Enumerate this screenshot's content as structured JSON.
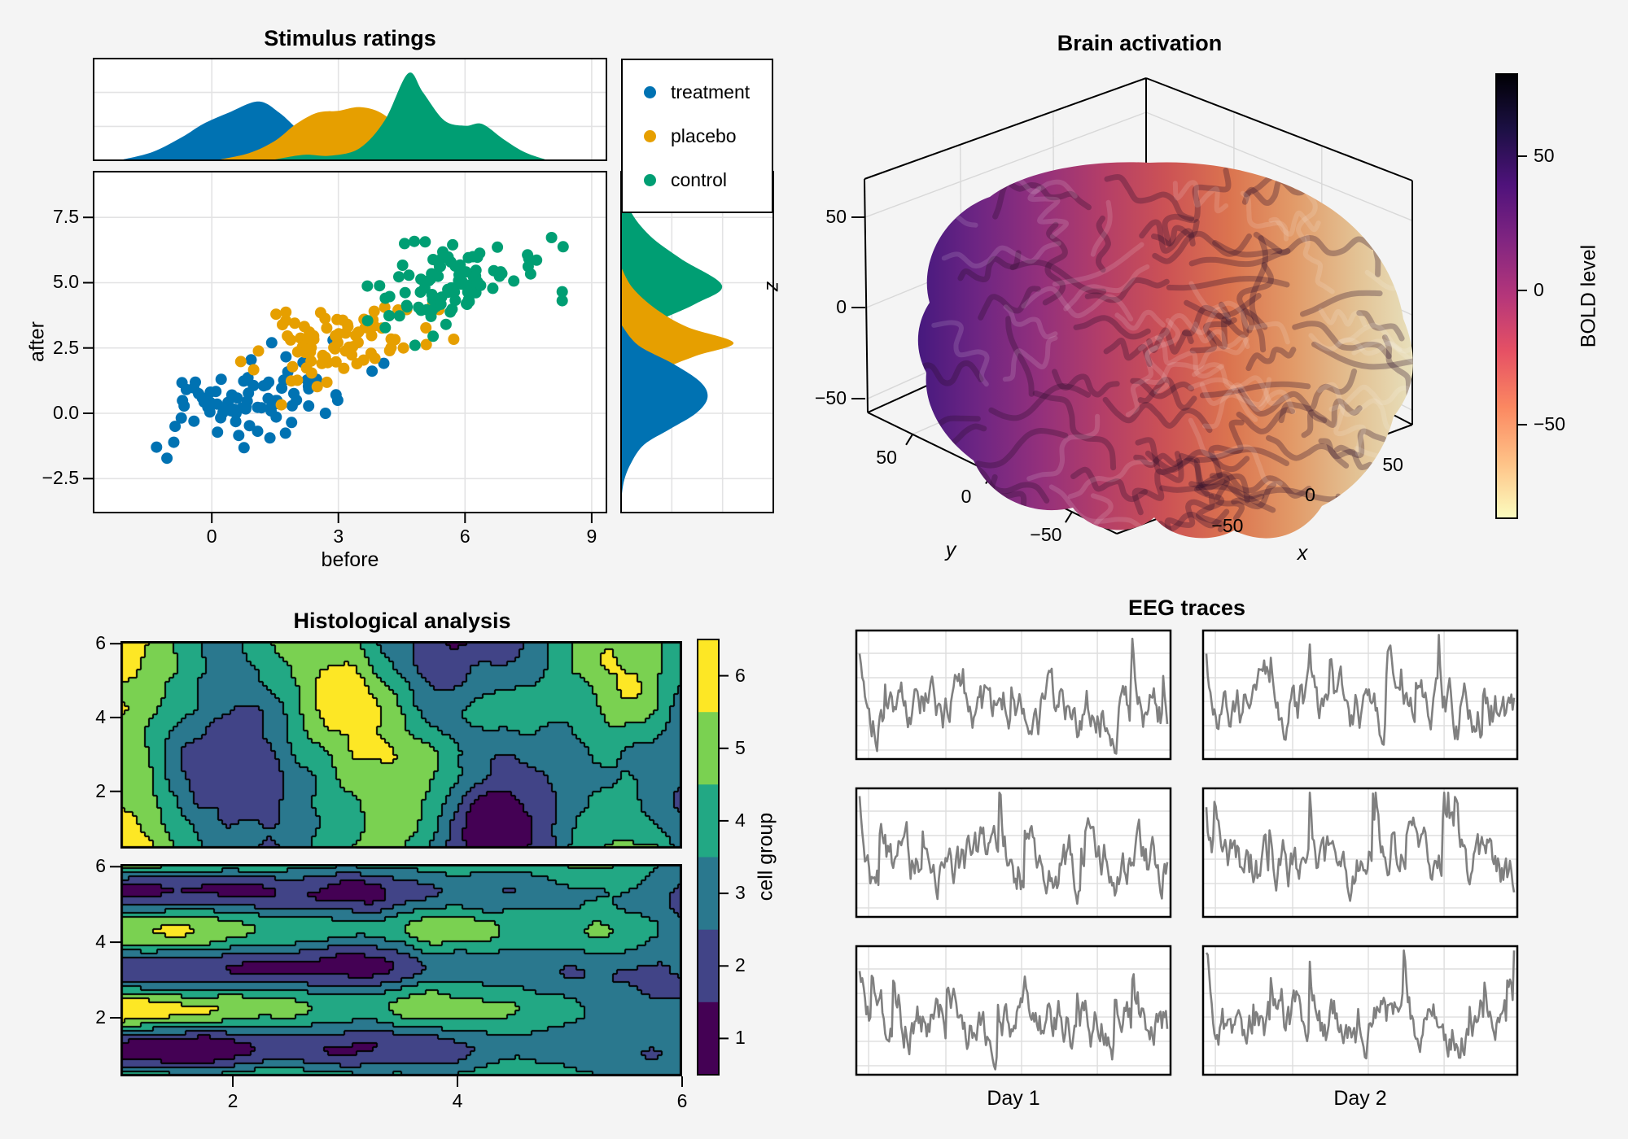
{
  "figure": {
    "background": "#f4f4f4",
    "panel_fill": "#ffffff",
    "grid_color": "#e3e3e4",
    "spine_color": "#000000"
  },
  "stimulus": {
    "title": "Stimulus ratings",
    "xlabel": "before",
    "ylabel": "after",
    "x_tick_labels": [
      "0",
      "3",
      "6",
      "9"
    ],
    "y_tick_labels": [
      "7.5",
      "5.0",
      "2.5",
      "0.0",
      "−2.5"
    ],
    "legend": {
      "items": [
        {
          "label": "treatment",
          "color": "#0072B2"
        },
        {
          "label": "placebo",
          "color": "#E69F00"
        },
        {
          "label": "control",
          "color": "#009E73"
        }
      ]
    }
  },
  "brain": {
    "title": "Brain activation",
    "xlabel": "x",
    "ylabel": "y",
    "zlabel": "z",
    "x_tick_labels": [
      "−50",
      "0",
      "50"
    ],
    "y_tick_labels": [
      "50",
      "0",
      "−50"
    ],
    "z_tick_labels": [
      "50",
      "0",
      "−50"
    ],
    "colorbar_label": "BOLD level",
    "colorbar_tick_labels": [
      "50",
      "0",
      "−50"
    ]
  },
  "histology": {
    "title": "Histological analysis",
    "x_tick_labels": [
      "2",
      "4",
      "6"
    ],
    "y_tick_labels": [
      "6",
      "4",
      "2"
    ],
    "colorbar_label": "cell group",
    "colorbar_tick_labels": [
      "6",
      "5",
      "4",
      "3",
      "2",
      "1"
    ]
  },
  "eeg": {
    "title": "EEG traces",
    "col_labels": [
      "Day 1",
      "Day 2"
    ]
  },
  "chart_data": [
    {
      "id": "stimulus_ratings",
      "type": "scatter",
      "title": "Stimulus ratings",
      "xlabel": "before",
      "ylabel": "after",
      "xlim": [
        -2.8,
        9.35
      ],
      "ylim": [
        -3.8,
        9.25
      ],
      "x_ticks": [
        0,
        3,
        6,
        9
      ],
      "y_ticks": [
        -2.5,
        0.0,
        2.5,
        5.0,
        7.5
      ],
      "grid": true,
      "legend_position": "top-right-box",
      "groups": [
        {
          "name": "treatment",
          "color": "#0072B2",
          "n": 85,
          "mean": [
            0.9,
            0.55
          ],
          "sd": [
            1.05,
            0.9
          ],
          "corr": 0.45,
          "seed": 7
        },
        {
          "name": "placebo",
          "color": "#E69F00",
          "n": 85,
          "mean": [
            3.05,
            2.7
          ],
          "sd": [
            1.0,
            0.75
          ],
          "corr": 0.4,
          "seed": 11
        },
        {
          "name": "control",
          "color": "#009E73",
          "n": 95,
          "mean": [
            5.35,
            4.95
          ],
          "sd": [
            1.15,
            0.85
          ],
          "corr": 0.35,
          "seed": 13
        }
      ],
      "marginal_x_density": [
        {
          "name": "treatment",
          "curve": [
            [
              -2.1,
              0
            ],
            [
              -1.4,
              0.08
            ],
            [
              -0.7,
              0.24
            ],
            [
              -0.2,
              0.38
            ],
            [
              0.4,
              0.5
            ],
            [
              1.1,
              0.62
            ],
            [
              1.6,
              0.5
            ],
            [
              2.1,
              0.3
            ],
            [
              2.7,
              0.13
            ],
            [
              3.3,
              0.05
            ],
            [
              4.0,
              0.01
            ],
            [
              4.6,
              0
            ]
          ]
        },
        {
          "name": "placebo",
          "curve": [
            [
              0.2,
              0
            ],
            [
              0.9,
              0.07
            ],
            [
              1.5,
              0.2
            ],
            [
              2.0,
              0.38
            ],
            [
              2.5,
              0.5
            ],
            [
              3.0,
              0.52
            ],
            [
              3.5,
              0.56
            ],
            [
              4.0,
              0.5
            ],
            [
              4.5,
              0.32
            ],
            [
              5.0,
              0.12
            ],
            [
              5.6,
              0.03
            ],
            [
              6.2,
              0
            ]
          ]
        },
        {
          "name": "control",
          "curve": [
            [
              1.5,
              0
            ],
            [
              2.2,
              0.05
            ],
            [
              2.8,
              0.04
            ],
            [
              3.5,
              0.12
            ],
            [
              4.1,
              0.42
            ],
            [
              4.65,
              0.92
            ],
            [
              5.0,
              0.72
            ],
            [
              5.5,
              0.42
            ],
            [
              6.0,
              0.36
            ],
            [
              6.4,
              0.38
            ],
            [
              6.9,
              0.22
            ],
            [
              7.4,
              0.08
            ],
            [
              7.9,
              0
            ]
          ]
        }
      ],
      "marginal_y_density": [
        {
          "name": "control",
          "curve": [
            [
              9.0,
              0
            ],
            [
              7.8,
              0.06
            ],
            [
              6.8,
              0.2
            ],
            [
              5.9,
              0.42
            ],
            [
              4.9,
              0.7
            ],
            [
              4.2,
              0.52
            ],
            [
              3.4,
              0.2
            ],
            [
              2.9,
              0.08
            ],
            [
              2.4,
              0.03
            ],
            [
              1.8,
              0
            ]
          ]
        },
        {
          "name": "placebo",
          "curve": [
            [
              5.6,
              0
            ],
            [
              4.8,
              0.08
            ],
            [
              4.0,
              0.24
            ],
            [
              3.3,
              0.46
            ],
            [
              2.7,
              0.78
            ],
            [
              2.2,
              0.52
            ],
            [
              1.6,
              0.26
            ],
            [
              0.9,
              0.1
            ],
            [
              0.2,
              0.03
            ],
            [
              -0.6,
              0
            ]
          ]
        },
        {
          "name": "treatment",
          "curve": [
            [
              3.4,
              0
            ],
            [
              2.6,
              0.12
            ],
            [
              1.9,
              0.36
            ],
            [
              1.2,
              0.55
            ],
            [
              0.6,
              0.6
            ],
            [
              0.0,
              0.52
            ],
            [
              -0.6,
              0.34
            ],
            [
              -1.2,
              0.16
            ],
            [
              -1.9,
              0.07
            ],
            [
              -2.6,
              0.02
            ],
            [
              -3.4,
              0
            ]
          ]
        }
      ]
    },
    {
      "id": "brain_activation",
      "type": "surface3d",
      "title": "Brain activation",
      "xlabel": "x",
      "ylabel": "y",
      "zlabel": "z",
      "x_ticks": [
        -50,
        0,
        50
      ],
      "y_ticks": [
        50,
        0,
        -50
      ],
      "z_ticks": [
        50,
        0,
        -50
      ],
      "surface": "brain mesh colored by BOLD level, dark purple at posterior (left) through red to cream at anterior (right)",
      "surface_gradient": [
        "#43187e",
        "#6d2583",
        "#93307c",
        "#b43e68",
        "#cc5255",
        "#db744f",
        "#e29a68",
        "#e3c294",
        "#e8e3c0"
      ],
      "colorbar": {
        "label": "BOLD level",
        "ticks": [
          50,
          0,
          -50
        ],
        "gradient_top_to_bottom": [
          "#000004",
          "#1c1044",
          "#4f127b",
          "#812581",
          "#b5367a",
          "#e65164",
          "#fb8861",
          "#fec287",
          "#fcfdbf"
        ]
      }
    },
    {
      "id": "histological_analysis",
      "type": "heatmap",
      "subtype": "filled-contour",
      "title": "Histological analysis",
      "levels": 6,
      "colorbar": {
        "label": "cell group",
        "ticks": [
          1,
          2,
          3,
          4,
          5,
          6
        ],
        "colors_low_to_high": [
          "#440154",
          "#414487",
          "#2a788e",
          "#22a884",
          "#7ad151",
          "#fde725"
        ]
      },
      "panels": [
        {
          "name": "top-sample",
          "pattern": "vertical-bands",
          "seed": 514,
          "x_ticks": [],
          "y_ticks": [
            2,
            4,
            6
          ],
          "xlim": [
            1,
            6
          ],
          "ylim": [
            0.45,
            6.07
          ]
        },
        {
          "name": "bottom-sample",
          "pattern": "horizontal-bands-fading-right",
          "seed": 915,
          "x_ticks": [
            2,
            4,
            6
          ],
          "y_ticks": [
            2,
            4,
            6
          ],
          "xlim": [
            1,
            6
          ],
          "ylim": [
            0.45,
            6.07
          ]
        }
      ]
    },
    {
      "id": "eeg_traces",
      "type": "line",
      "title": "EEG traces",
      "rows": 3,
      "cols": 2,
      "col_labels": [
        "Day 1",
        "Day 2"
      ],
      "line_color": "#808080",
      "points_per_trace": 230,
      "ylim": [
        -2.6,
        3.4
      ],
      "trace_seeds": [
        [
          101,
          202
        ],
        [
          303,
          404
        ],
        [
          505,
          606
        ]
      ],
      "description": "six subplots of noisy EEG-like signals with upward spikes, no tick labels"
    }
  ]
}
